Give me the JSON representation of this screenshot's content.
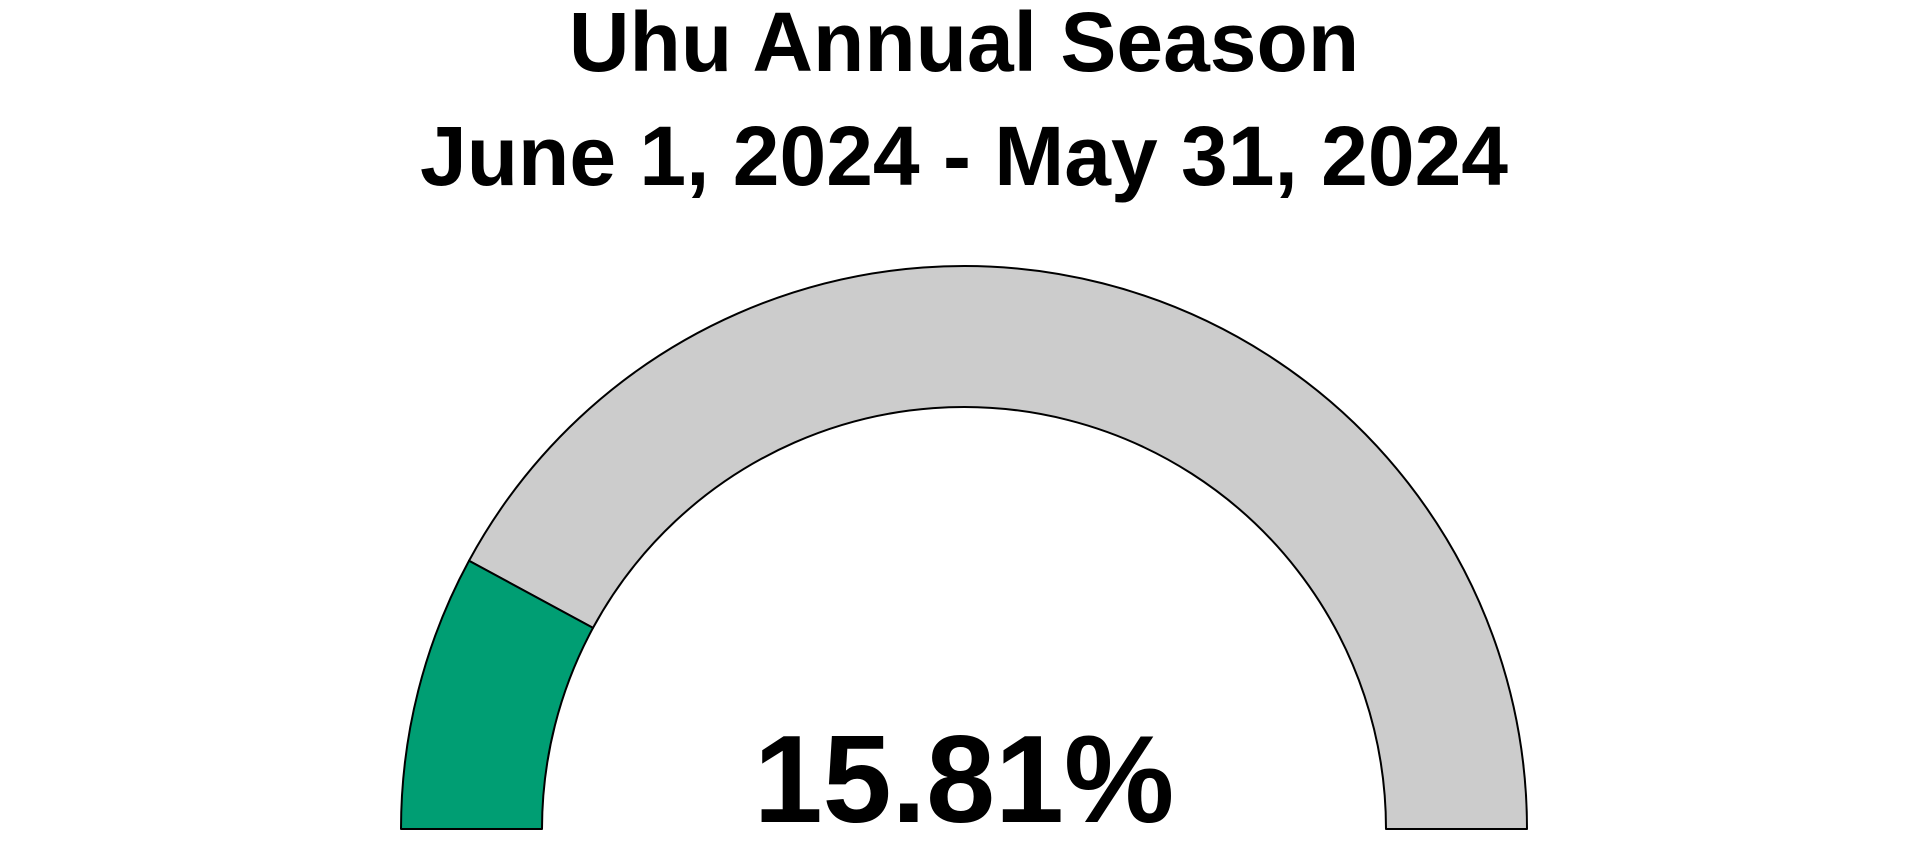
{
  "chart_data": {
    "type": "gauge",
    "title": "Uhu Annual Season",
    "subtitle": "June 1, 2024 - May 31, 2024",
    "value": 15.81,
    "value_label": "15.81%",
    "range": [
      0,
      100
    ],
    "colors": {
      "fill": "#009E73",
      "track": "#CCCCCC",
      "outline": "#000000",
      "text": "#000000"
    }
  }
}
